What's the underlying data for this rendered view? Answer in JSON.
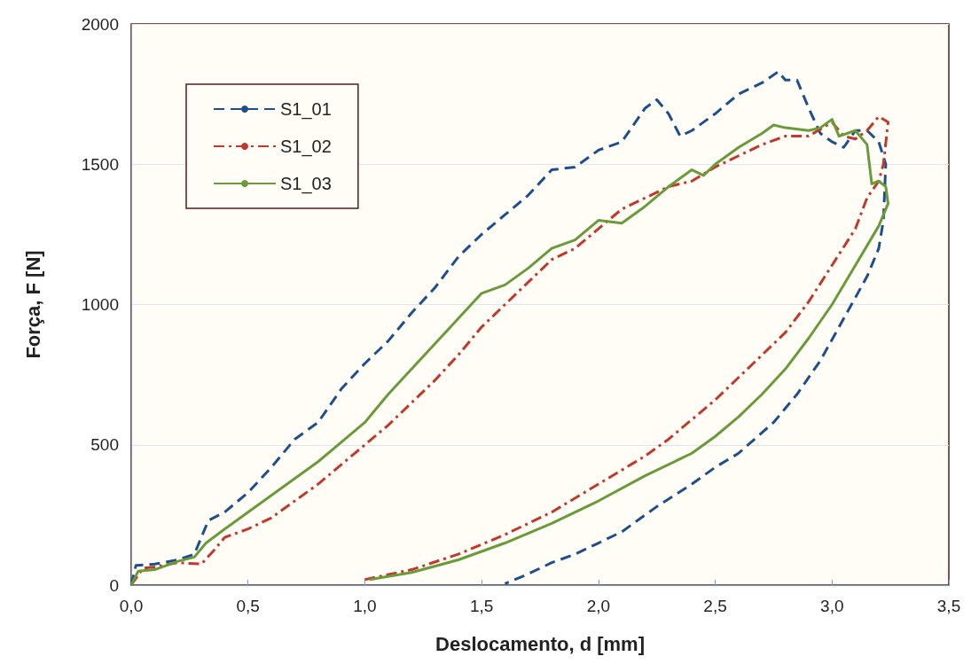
{
  "chart_data": {
    "type": "line",
    "xlabel": "Deslocamento, d [mm]",
    "ylabel": "Força, F [N]",
    "xlim": [
      0,
      3.5
    ],
    "xticks": [
      {
        "value": 0,
        "label": "0,0"
      },
      {
        "value": 0.5,
        "label": "0,5"
      },
      {
        "value": 1,
        "label": "1,0"
      },
      {
        "value": 1.5,
        "label": "1,5"
      },
      {
        "value": 2,
        "label": "2,0"
      },
      {
        "value": 2.5,
        "label": "2,5"
      },
      {
        "value": 3,
        "label": "3,0"
      },
      {
        "value": 3.5,
        "label": "3,5"
      }
    ],
    "ylim": [
      0,
      2000
    ],
    "yticks": [
      0,
      500,
      1000,
      1500,
      2000
    ],
    "grid": "y",
    "legend": "top left",
    "marker": "none",
    "series": [
      {
        "name": "S1_01",
        "color": "#1f4e8c",
        "line_style": "dashed",
        "x": [
          0,
          0.02,
          0.1,
          0.2,
          0.27,
          0.33,
          0.4,
          0.5,
          0.6,
          0.7,
          0.8,
          0.9,
          1.0,
          1.1,
          1.2,
          1.3,
          1.4,
          1.5,
          1.6,
          1.7,
          1.8,
          1.9,
          2.0,
          2.1,
          2.2,
          2.25,
          2.3,
          2.35,
          2.4,
          2.5,
          2.6,
          2.7,
          2.77,
          2.8,
          2.85,
          2.9,
          2.95,
          3.0,
          3.05,
          3.1,
          3.15,
          3.2,
          3.23,
          3.22,
          3.2,
          3.15,
          3.05,
          2.95,
          2.85,
          2.75,
          2.6,
          2.5,
          2.4,
          2.25,
          2.1,
          2.0,
          1.9,
          1.8,
          1.7,
          1.6
        ],
        "values": [
          0,
          70,
          75,
          90,
          110,
          230,
          260,
          330,
          420,
          520,
          580,
          700,
          790,
          870,
          970,
          1060,
          1170,
          1250,
          1320,
          1390,
          1480,
          1490,
          1550,
          1580,
          1700,
          1730,
          1680,
          1600,
          1620,
          1680,
          1750,
          1790,
          1830,
          1800,
          1800,
          1700,
          1610,
          1580,
          1560,
          1620,
          1620,
          1580,
          1500,
          1300,
          1200,
          1100,
          950,
          800,
          680,
          580,
          470,
          420,
          360,
          280,
          190,
          150,
          110,
          80,
          40,
          5
        ]
      },
      {
        "name": "S1_02",
        "color": "#c0392b",
        "line_style": "dashdot",
        "x": [
          0,
          0.05,
          0.1,
          0.2,
          0.3,
          0.35,
          0.4,
          0.5,
          0.6,
          0.7,
          0.8,
          0.9,
          1.0,
          1.1,
          1.2,
          1.3,
          1.4,
          1.5,
          1.6,
          1.7,
          1.8,
          1.9,
          2.0,
          2.1,
          2.2,
          2.3,
          2.4,
          2.5,
          2.6,
          2.7,
          2.8,
          2.9,
          3.0,
          3.05,
          3.1,
          3.15,
          3.2,
          3.24,
          3.22,
          3.2,
          3.15,
          3.1,
          3.0,
          2.9,
          2.8,
          2.7,
          2.6,
          2.5,
          2.4,
          2.3,
          2.2,
          2.0,
          1.8,
          1.6,
          1.4,
          1.2,
          1.0
        ],
        "values": [
          0,
          60,
          65,
          80,
          75,
          120,
          170,
          200,
          240,
          300,
          360,
          430,
          500,
          570,
          650,
          730,
          820,
          920,
          1000,
          1080,
          1160,
          1200,
          1270,
          1340,
          1380,
          1420,
          1440,
          1490,
          1530,
          1570,
          1600,
          1600,
          1650,
          1600,
          1590,
          1620,
          1670,
          1650,
          1500,
          1440,
          1380,
          1270,
          1140,
          1010,
          900,
          820,
          740,
          660,
          590,
          520,
          460,
          360,
          260,
          180,
          110,
          55,
          20
        ]
      },
      {
        "name": "S1_03",
        "color": "#6a9a3a",
        "line_style": "solid",
        "x": [
          0,
          0.03,
          0.1,
          0.2,
          0.27,
          0.32,
          0.4,
          0.5,
          0.6,
          0.7,
          0.8,
          0.9,
          1.0,
          1.1,
          1.2,
          1.3,
          1.4,
          1.5,
          1.6,
          1.7,
          1.8,
          1.9,
          2.0,
          2.1,
          2.2,
          2.3,
          2.4,
          2.45,
          2.5,
          2.6,
          2.7,
          2.75,
          2.8,
          2.9,
          2.95,
          3.0,
          3.03,
          3.1,
          3.15,
          3.17,
          3.2,
          3.23,
          3.24,
          3.2,
          3.1,
          3.0,
          2.9,
          2.8,
          2.7,
          2.6,
          2.5,
          2.4,
          2.2,
          2.0,
          1.8,
          1.6,
          1.4,
          1.2,
          1.02
        ],
        "values": [
          0,
          50,
          55,
          85,
          100,
          150,
          200,
          260,
          320,
          380,
          440,
          510,
          580,
          680,
          770,
          860,
          950,
          1040,
          1070,
          1130,
          1200,
          1230,
          1300,
          1290,
          1350,
          1420,
          1480,
          1460,
          1500,
          1560,
          1610,
          1640,
          1630,
          1620,
          1630,
          1660,
          1600,
          1620,
          1570,
          1430,
          1440,
          1420,
          1360,
          1280,
          1140,
          1000,
          880,
          770,
          680,
          600,
          530,
          470,
          390,
          300,
          220,
          150,
          90,
          45,
          20
        ]
      }
    ]
  }
}
